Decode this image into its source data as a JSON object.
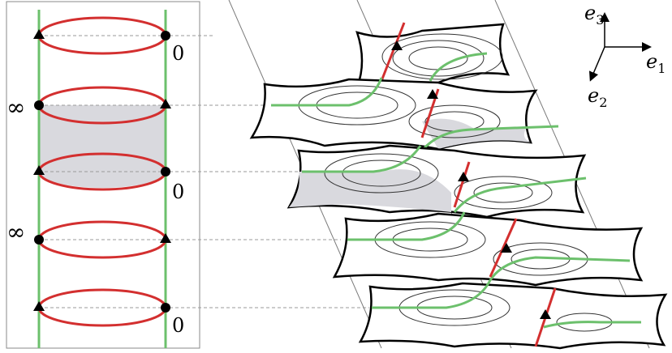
{
  "left_panel": {
    "levels": [
      "0",
      "∞",
      "0",
      "∞",
      "0"
    ]
  },
  "axes": {
    "e3_base": "e",
    "e3_sub": "3",
    "e1_base": "e",
    "e1_sub": "1",
    "e2_base": "e",
    "e2_sub": "2"
  },
  "colors": {
    "frame": "#8a8a8a",
    "green": "#6cc06c",
    "red": "#d32f2f",
    "shade": "#d9d9de",
    "dash": "#9a9a9a"
  }
}
